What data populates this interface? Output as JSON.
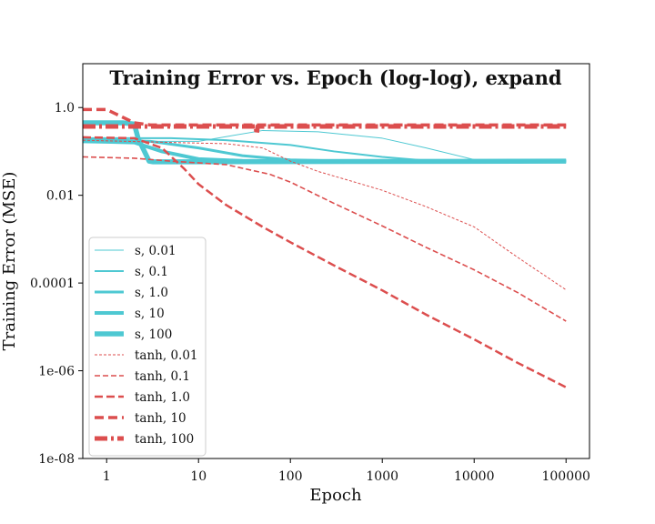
{
  "chart_data": {
    "type": "line",
    "title": "Training Error vs. Epoch (log-log), expand",
    "xlabel": "Epoch",
    "ylabel": "Training Error (MSE)",
    "xscale": "log",
    "yscale": "log",
    "xlim": [
      0.55,
      180000
    ],
    "ylim": [
      1e-08,
      10
    ],
    "xticks": [
      {
        "value": 1,
        "label": "1"
      },
      {
        "value": 10,
        "label": "10"
      },
      {
        "value": 100,
        "label": "100"
      },
      {
        "value": 1000,
        "label": "1000"
      },
      {
        "value": 10000,
        "label": "10000"
      },
      {
        "value": 100000,
        "label": "100000"
      }
    ],
    "yticks": [
      {
        "value": 1e-08,
        "label": "1e-08"
      },
      {
        "value": 1e-06,
        "label": "1e-06"
      },
      {
        "value": 0.0001,
        "label": "0.0001"
      },
      {
        "value": 0.01,
        "label": "0.01"
      },
      {
        "value": 1,
        "label": "1.0"
      }
    ],
    "grid": false,
    "legend_position": "lower-left",
    "colors": {
      "s": "#4ec8d2",
      "tanh": "#dc4e4e"
    },
    "series": [
      {
        "name": "s, 0.01",
        "color": "#4ec8d2",
        "width": 1,
        "dash": "solid",
        "points": [
          [
            0.55,
            0.17
          ],
          [
            2,
            0.17
          ],
          [
            10,
            0.17
          ],
          [
            50,
            0.3
          ],
          [
            200,
            0.28
          ],
          [
            1000,
            0.2
          ],
          [
            3000,
            0.12
          ],
          [
            10000,
            0.065
          ],
          [
            30000,
            0.06
          ],
          [
            100000,
            0.06
          ]
        ]
      },
      {
        "name": "s, 0.1",
        "color": "#4ec8d2",
        "width": 2,
        "dash": "solid",
        "points": [
          [
            0.55,
            0.2
          ],
          [
            5,
            0.2
          ],
          [
            20,
            0.18
          ],
          [
            100,
            0.14
          ],
          [
            300,
            0.1
          ],
          [
            1000,
            0.075
          ],
          [
            3000,
            0.062
          ],
          [
            10000,
            0.06
          ],
          [
            100000,
            0.06
          ]
        ]
      },
      {
        "name": "s, 1.0",
        "color": "#4ec8d2",
        "width": 3,
        "dash": "solid",
        "points": [
          [
            0.55,
            0.19
          ],
          [
            3,
            0.17
          ],
          [
            10,
            0.12
          ],
          [
            30,
            0.08
          ],
          [
            100,
            0.064
          ],
          [
            300,
            0.061
          ],
          [
            1000,
            0.06
          ],
          [
            100000,
            0.06
          ]
        ]
      },
      {
        "name": "s, 10",
        "color": "#4ec8d2",
        "width": 4,
        "dash": "solid",
        "points": [
          [
            0.55,
            0.17
          ],
          [
            2,
            0.16
          ],
          [
            4,
            0.1
          ],
          [
            10,
            0.067
          ],
          [
            30,
            0.061
          ],
          [
            100,
            0.06
          ],
          [
            100000,
            0.06
          ]
        ]
      },
      {
        "name": "s, 100",
        "color": "#4ec8d2",
        "width": 5.5,
        "dash": "solid",
        "points": [
          [
            0.55,
            0.45
          ],
          [
            1.5,
            0.45
          ],
          [
            2,
            0.42
          ],
          [
            2.2,
            0.2
          ],
          [
            2.9,
            0.06
          ],
          [
            3.2,
            0.058
          ],
          [
            5,
            0.058
          ],
          [
            100000,
            0.06
          ]
        ]
      },
      {
        "name": "tanh, 0.01",
        "color": "#dc4e4e",
        "width": 1,
        "dash": "3,2",
        "points": [
          [
            0.55,
            0.18
          ],
          [
            5,
            0.16
          ],
          [
            20,
            0.15
          ],
          [
            50,
            0.12
          ],
          [
            100,
            0.06
          ],
          [
            200,
            0.035
          ],
          [
            500,
            0.02
          ],
          [
            1000,
            0.013
          ],
          [
            3000,
            0.0055
          ],
          [
            10000,
            0.0019
          ],
          [
            30000,
            0.00038
          ],
          [
            100000,
            7e-05
          ]
        ]
      },
      {
        "name": "tanh, 0.1",
        "color": "#dc4e4e",
        "width": 1.6,
        "dash": "6,3",
        "points": [
          [
            0.55,
            0.075
          ],
          [
            2,
            0.07
          ],
          [
            5,
            0.06
          ],
          [
            20,
            0.05
          ],
          [
            60,
            0.03
          ],
          [
            100,
            0.02
          ],
          [
            300,
            0.0065
          ],
          [
            1000,
            0.002
          ],
          [
            3000,
            0.00065
          ],
          [
            10000,
            0.0002
          ],
          [
            30000,
            6e-05
          ],
          [
            100000,
            1.35e-05
          ]
        ]
      },
      {
        "name": "tanh, 1.0",
        "color": "#dc4e4e",
        "width": 2.5,
        "dash": "9,4",
        "points": [
          [
            0.55,
            0.21
          ],
          [
            2,
            0.2
          ],
          [
            4,
            0.12
          ],
          [
            7,
            0.04
          ],
          [
            10,
            0.018
          ],
          [
            20,
            0.006
          ],
          [
            50,
            0.0019
          ],
          [
            100,
            0.00085
          ],
          [
            300,
            0.00025
          ],
          [
            1000,
            6.8e-05
          ],
          [
            3000,
            1.9e-05
          ],
          [
            10000,
            5.2e-06
          ],
          [
            30000,
            1.5e-06
          ],
          [
            100000,
            4.2e-07
          ]
        ]
      },
      {
        "name": "tanh, 10",
        "color": "#dc4e4e",
        "width": 3.5,
        "dash": "10,5",
        "points": [
          [
            0.55,
            0.9
          ],
          [
            1,
            0.9
          ],
          [
            2,
            0.45
          ],
          [
            3,
            0.4
          ],
          [
            10,
            0.4
          ],
          [
            100000,
            0.4
          ]
        ]
      },
      {
        "name": "tanh, 100",
        "color": "#dc4e4e",
        "width": 5,
        "dash": "14,4,3,4",
        "points": [
          [
            0.55,
            0.37
          ],
          [
            10,
            0.37
          ],
          [
            40,
            0.37
          ],
          [
            42,
            0.37
          ],
          [
            43,
            0.25
          ],
          [
            44,
            0.37
          ],
          [
            100000,
            0.37
          ]
        ]
      }
    ]
  }
}
